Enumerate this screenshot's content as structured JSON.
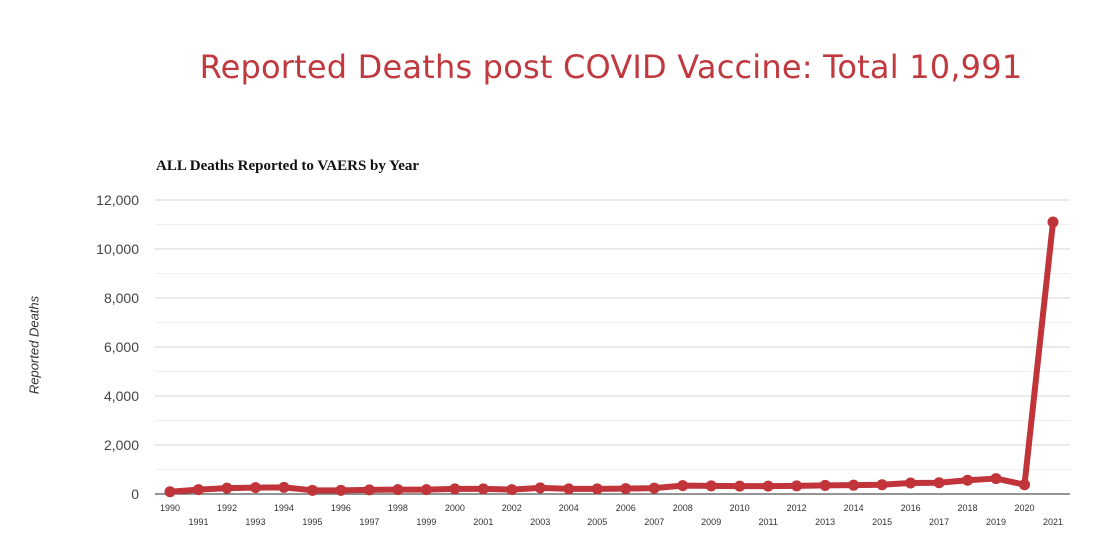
{
  "headline": "Reported Deaths post COVID Vaccine: Total 10,991",
  "chart_data": {
    "type": "line",
    "title": "ALL Deaths Reported to VAERS by Year",
    "xlabel": "",
    "ylabel": "Reported Deaths",
    "ylim": [
      0,
      12000
    ],
    "yticks": [
      0,
      2000,
      4000,
      6000,
      8000,
      10000,
      12000
    ],
    "ytick_labels": [
      "0",
      "2,000",
      "4,000",
      "6,000",
      "8,000",
      "10,000",
      "12,000"
    ],
    "grid": true,
    "x": [
      1990,
      1991,
      1992,
      1993,
      1994,
      1995,
      1996,
      1997,
      1998,
      1999,
      2000,
      2001,
      2002,
      2003,
      2004,
      2005,
      2006,
      2007,
      2008,
      2009,
      2010,
      2011,
      2012,
      2013,
      2014,
      2015,
      2016,
      2017,
      2018,
      2019,
      2020,
      2021
    ],
    "x_labels": [
      "1990",
      "1991",
      "1992",
      "1993",
      "1994",
      "1995",
      "1996",
      "1997",
      "1998",
      "1999",
      "2000",
      "2001",
      "2002",
      "2003",
      "2004",
      "2005",
      "2006",
      "2007",
      "2008",
      "2009",
      "2010",
      "2011",
      "2012",
      "2013",
      "2014",
      "2015",
      "2016",
      "2017",
      "2018",
      "2019",
      "2020",
      "2021"
    ],
    "series": [
      {
        "values": [
          90,
          180,
          240,
          260,
          270,
          150,
          150,
          170,
          180,
          180,
          210,
          210,
          180,
          250,
          210,
          210,
          220,
          240,
          340,
          330,
          320,
          320,
          330,
          350,
          360,
          380,
          450,
          460,
          560,
          630,
          380,
          11100
        ],
        "color": "#c0343a"
      }
    ]
  }
}
